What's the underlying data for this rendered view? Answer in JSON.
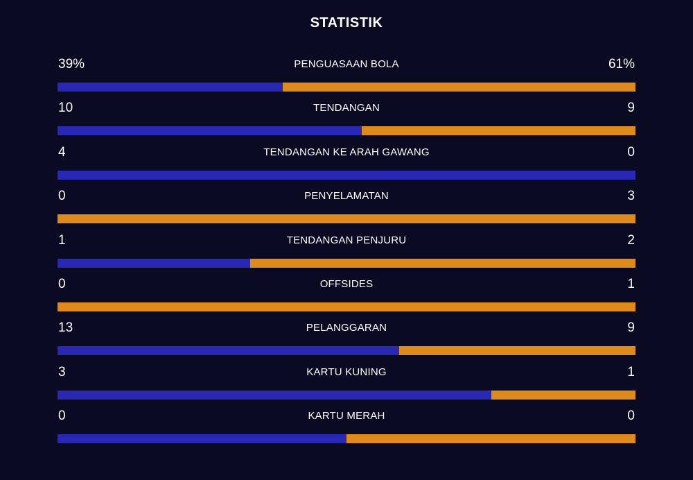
{
  "title": "STATISTIK",
  "colors": {
    "background": "#0a0a23",
    "home": "#2828b4",
    "away": "#e08a1c",
    "text": "#ffffff"
  },
  "stats": [
    {
      "label": "PENGUASAAN BOLA",
      "home": "39%",
      "away": "61%",
      "home_share": 0.39
    },
    {
      "label": "TENDANGAN",
      "home": "10",
      "away": "9",
      "home_share": 0.526
    },
    {
      "label": "TENDANGAN KE ARAH GAWANG",
      "home": "4",
      "away": "0",
      "home_share": 1.0
    },
    {
      "label": "PENYELAMATAN",
      "home": "0",
      "away": "3",
      "home_share": 0.0
    },
    {
      "label": "TENDANGAN PENJURU",
      "home": "1",
      "away": "2",
      "home_share": 0.333
    },
    {
      "label": "OFFSIDES",
      "home": "0",
      "away": "1",
      "home_share": 0.0
    },
    {
      "label": "PELANGGARAN",
      "home": "13",
      "away": "9",
      "home_share": 0.591
    },
    {
      "label": "KARTU KUNING",
      "home": "3",
      "away": "1",
      "home_share": 0.75
    },
    {
      "label": "KARTU MERAH",
      "home": "0",
      "away": "0",
      "home_share": 0.5
    }
  ]
}
